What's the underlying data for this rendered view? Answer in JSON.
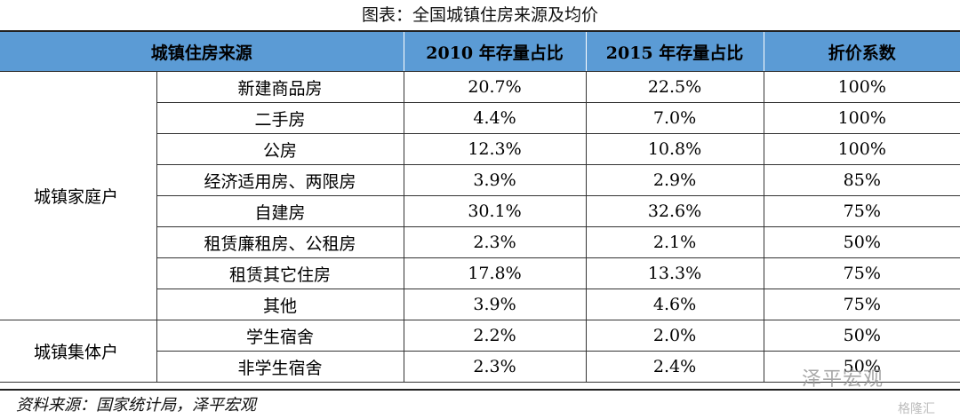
{
  "caption": "图表：全国城镇住房来源及均价",
  "headers": [
    "城镇住房来源",
    "2010 年存量占比",
    "2015 年存量占比",
    "折价系数"
  ],
  "groups": [
    {
      "label": "城镇家庭户",
      "rows": [
        {
          "type": "新建商品房",
          "y2010": "20.7%",
          "y2015": "22.5%",
          "factor": "100%"
        },
        {
          "type": "二手房",
          "y2010": "4.4%",
          "y2015": "7.0%",
          "factor": "100%"
        },
        {
          "type": "公房",
          "y2010": "12.3%",
          "y2015": "10.8%",
          "factor": "100%"
        },
        {
          "type": "经济适用房、两限房",
          "y2010": "3.9%",
          "y2015": "2.9%",
          "factor": "85%"
        },
        {
          "type": "自建房",
          "y2010": "30.1%",
          "y2015": "32.6%",
          "factor": "75%"
        },
        {
          "type": "租赁廉租房、公租房",
          "y2010": "2.3%",
          "y2015": "2.1%",
          "factor": "50%"
        },
        {
          "type": "租赁其它住房",
          "y2010": "17.8%",
          "y2015": "13.3%",
          "factor": "75%"
        },
        {
          "type": "其他",
          "y2010": "3.9%",
          "y2015": "4.6%",
          "factor": "75%"
        }
      ]
    },
    {
      "label": "城镇集体户",
      "rows": [
        {
          "type": "学生宿舍",
          "y2010": "2.2%",
          "y2015": "2.0%",
          "factor": "50%"
        },
        {
          "type": "非学生宿舍",
          "y2010": "2.3%",
          "y2015": "2.4%",
          "factor": "50%"
        }
      ]
    }
  ],
  "source": "资料来源：国家统计局，泽平宏观",
  "watermark": "泽平宏观",
  "watermark_small": "格隆汇"
}
